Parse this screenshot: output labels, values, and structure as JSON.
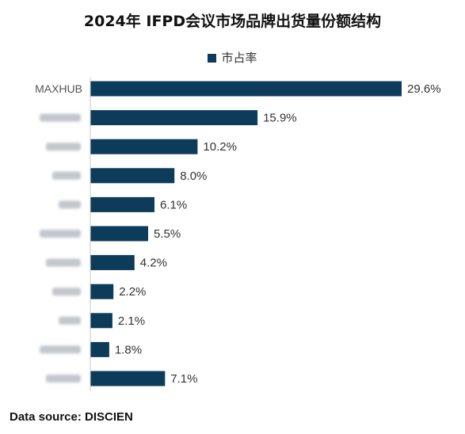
{
  "header": {
    "title": "2024年 IFPD会议市场品牌出货量份额结构"
  },
  "legend": {
    "entries": [
      {
        "label": "市占率",
        "color": "#0d3b5a"
      }
    ]
  },
  "footer": {
    "source": "Data source: DISCIEN"
  },
  "chart_data": {
    "type": "bar",
    "orientation": "horizontal",
    "title": "2024年 IFPD会议市场品牌出货量份额结构",
    "legend_position": "top",
    "grid": false,
    "categories": [
      "MAXHUB",
      "",
      "",
      "",
      "",
      "",
      "",
      "",
      "",
      "",
      ""
    ],
    "categories_obscured": [
      false,
      true,
      true,
      true,
      true,
      true,
      true,
      true,
      true,
      true,
      true
    ],
    "series": [
      {
        "name": "市占率",
        "color": "#0d3b5a",
        "values": [
          29.6,
          15.9,
          10.2,
          8.0,
          6.1,
          5.5,
          4.2,
          2.2,
          2.1,
          1.8,
          7.1
        ],
        "value_labels": [
          "29.6%",
          "15.9%",
          "10.2%",
          "8.0%",
          "6.1%",
          "5.5%",
          "4.2%",
          "2.2%",
          "2.1%",
          "1.8%",
          "7.1%"
        ]
      }
    ],
    "xlim": [
      0,
      29.6
    ],
    "unit": "%"
  }
}
